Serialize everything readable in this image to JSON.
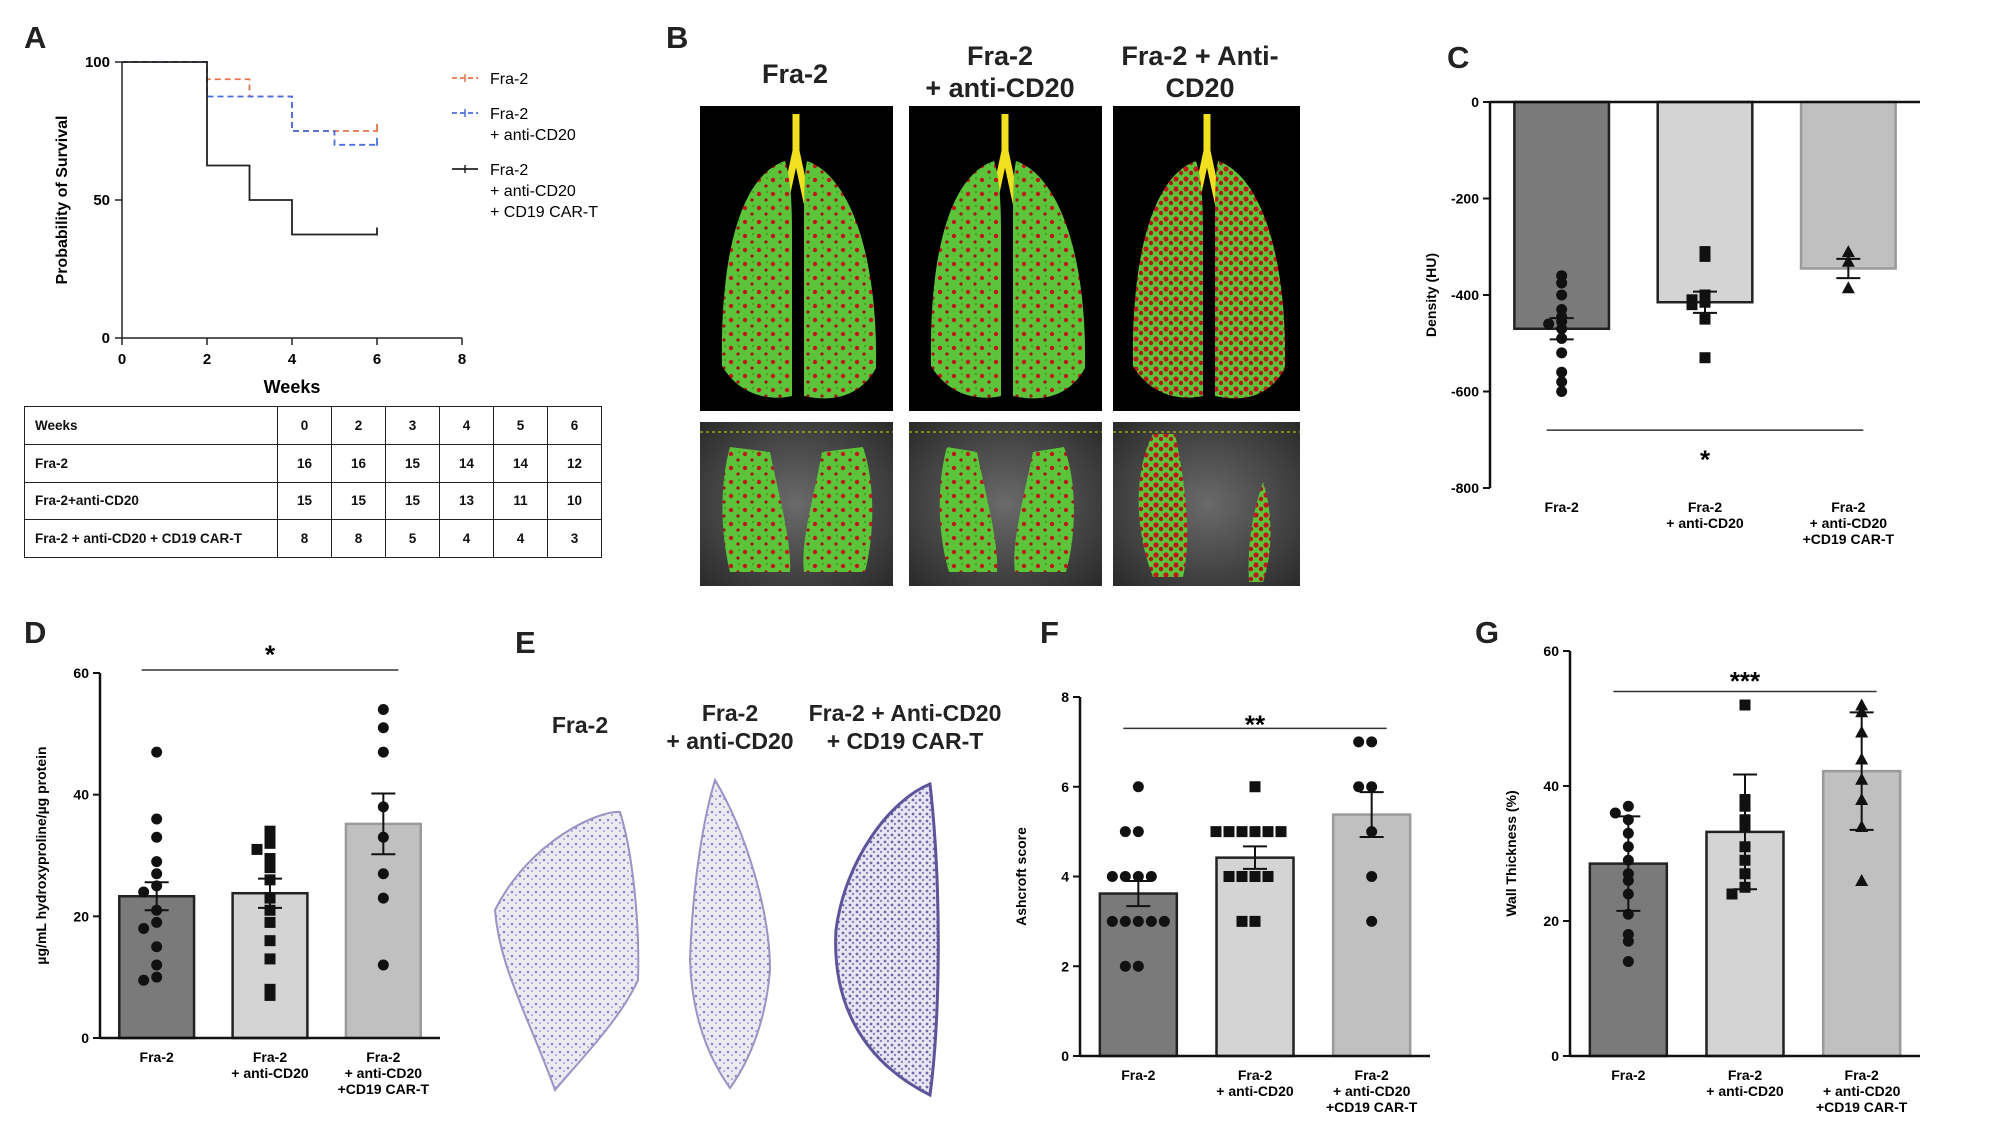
{
  "panels": {
    "A": {
      "label": "A",
      "survival": {
        "ylabel": "Probability of Survival",
        "xlabel": "Weeks",
        "xticks": [
          "0",
          "2",
          "4",
          "6",
          "8"
        ],
        "yticks": [
          "0",
          "50",
          "100"
        ],
        "xlim": [
          0,
          8
        ],
        "ylim": [
          0,
          100
        ],
        "series": [
          {
            "name": "Fra-2",
            "color": "#e8744a",
            "dash": "6,4",
            "steps": [
              [
                0,
                100
              ],
              [
                2,
                93.75
              ],
              [
                3,
                87.5
              ],
              [
                4,
                75
              ],
              [
                6,
                75
              ]
            ]
          },
          {
            "name": "Fra-2 + anti-CD20",
            "color": "#4a6ee0",
            "dash": "6,4",
            "steps": [
              [
                0,
                100
              ],
              [
                2,
                87.5
              ],
              [
                4,
                75
              ],
              [
                5,
                70
              ],
              [
                6,
                70
              ]
            ]
          },
          {
            "name": "Fra-2 + anti-CD20 + CD19 CAR-T",
            "color": "#222222",
            "dash": "",
            "steps": [
              [
                0,
                100
              ],
              [
                2,
                62.5
              ],
              [
                3,
                50
              ],
              [
                4,
                37.5
              ],
              [
                6,
                37.5
              ]
            ]
          }
        ],
        "legend": [
          {
            "lines": [
              "Fra-2"
            ],
            "color": "#e8744a",
            "dashed": true
          },
          {
            "lines": [
              "Fra-2",
              "+ anti-CD20"
            ],
            "color": "#4a6ee0",
            "dashed": true
          },
          {
            "lines": [
              "Fra-2",
              "+ anti-CD20",
              "+ CD19 CAR-T"
            ],
            "color": "#222222",
            "dashed": false
          }
        ]
      },
      "table": {
        "header": [
          "Weeks",
          "0",
          "2",
          "3",
          "4",
          "5",
          "6"
        ],
        "rows": [
          [
            "Fra-2",
            "16",
            "16",
            "15",
            "14",
            "14",
            "12"
          ],
          [
            "Fra-2+anti-CD20",
            "15",
            "15",
            "15",
            "13",
            "11",
            "10"
          ],
          [
            "Fra-2 + anti-CD20 + CD19 CAR-T",
            "8",
            "8",
            "5",
            "4",
            "4",
            "3"
          ]
        ]
      }
    },
    "B": {
      "label": "B",
      "titles": [
        [
          "Fra-2"
        ],
        [
          "Fra-2",
          "+ anti-CD20"
        ],
        [
          "Fra-2 + Anti-",
          "CD20"
        ]
      ]
    },
    "E": {
      "label": "E",
      "titles": [
        [
          "Fra-2"
        ],
        [
          "Fra-2",
          "+ anti-CD20"
        ],
        [
          "Fra-2 + Anti-CD20",
          "+ CD19 CAR-T"
        ]
      ]
    }
  },
  "chart_data": [
    {
      "id": "C",
      "label": "C",
      "type": "bar",
      "ylabel": "Density (HU)",
      "ylim": [
        -800,
        0
      ],
      "yticks": [
        0,
        -200,
        -400,
        -600,
        -800
      ],
      "categories": [
        [
          "Fra-2"
        ],
        [
          "Fra-2",
          "+ anti-CD20"
        ],
        [
          "Fra-2",
          "+ anti-CD20",
          "+CD19 CAR-T"
        ]
      ],
      "values": [
        -470,
        -415,
        -345
      ],
      "errors": [
        22,
        22,
        20
      ],
      "bar_colors": [
        "#7a7a7a",
        "#d4d4d4",
        "#c0c0c0"
      ],
      "bar_edges": [
        "#222222",
        "#222222",
        "#9a9a9a"
      ],
      "markers": [
        "circle",
        "square",
        "triangle"
      ],
      "points": [
        [
          -360,
          -375,
          -400,
          -430,
          -445,
          -455,
          -460,
          -470,
          -490,
          -520,
          -560,
          -580,
          -600
        ],
        [
          -310,
          -320,
          -400,
          -410,
          -415,
          -420,
          -450,
          -530
        ],
        [
          -310,
          -330,
          -385
        ]
      ],
      "significance": {
        "text": "*",
        "from": 0,
        "to": 2,
        "value": -680,
        "text_value": -735
      }
    },
    {
      "id": "D",
      "label": "D",
      "type": "bar",
      "ylabel": "µg/mL hydroxyproline/µg protein",
      "ylim": [
        0,
        60
      ],
      "yticks": [
        0,
        20,
        40,
        60
      ],
      "categories": [
        [
          "Fra-2"
        ],
        [
          "Fra-2",
          "+ anti-CD20"
        ],
        [
          "Fra-2",
          "+ anti-CD20",
          "+CD19 CAR-T"
        ]
      ],
      "values": [
        23.3,
        23.8,
        35.2
      ],
      "errors": [
        2.3,
        2.4,
        5
      ],
      "bar_colors": [
        "#7a7a7a",
        "#d4d4d4",
        "#c0c0c0"
      ],
      "bar_edges": [
        "#222222",
        "#222222",
        "#9a9a9a"
      ],
      "markers": [
        "circle",
        "square",
        "circle"
      ],
      "points": [
        [
          47,
          36,
          33,
          29,
          27,
          25,
          24,
          21,
          19,
          18,
          15,
          12,
          10,
          9.5
        ],
        [
          34,
          33,
          32,
          31,
          29.5,
          28,
          26,
          23,
          21,
          19,
          16,
          13,
          8,
          7
        ],
        [
          54,
          51,
          47,
          38,
          33,
          27,
          23,
          12
        ]
      ],
      "significance": {
        "text": "*",
        "from": 0,
        "to": 2,
        "value": 60.5,
        "text_value": 63.5
      }
    },
    {
      "id": "F",
      "label": "F",
      "type": "bar",
      "ylabel": "Ashcroft score",
      "ylim": [
        0,
        8
      ],
      "yticks": [
        0,
        2,
        4,
        6,
        8
      ],
      "categories": [
        [
          "Fra-2"
        ],
        [
          "Fra-2",
          "+ anti-CD20"
        ],
        [
          "Fra-2",
          "+ anti-CD20",
          "+CD19 CAR-T"
        ]
      ],
      "values": [
        3.62,
        4.42,
        5.38
      ],
      "errors": [
        0.28,
        0.25,
        0.5
      ],
      "bar_colors": [
        "#7a7a7a",
        "#d4d4d4",
        "#c0c0c0"
      ],
      "bar_edges": [
        "#222222",
        "#222222",
        "#9a9a9a"
      ],
      "markers": [
        "circle",
        "square",
        "circle"
      ],
      "points": [
        [
          6,
          5,
          5,
          4,
          4,
          4,
          4,
          3,
          3,
          3,
          3,
          3,
          2,
          2
        ],
        [
          6,
          5,
          5,
          5,
          5,
          5,
          5,
          4,
          4,
          4,
          4,
          3,
          3
        ],
        [
          7,
          7,
          6,
          6,
          5,
          4,
          3
        ]
      ],
      "significance": {
        "text": "**",
        "from": 0,
        "to": 2,
        "value": 7.3,
        "text_value": 7.45
      }
    },
    {
      "id": "G",
      "label": "G",
      "type": "bar",
      "ylabel": "Wall Thickness (%)",
      "ylim": [
        0,
        60
      ],
      "yticks": [
        0,
        20,
        40,
        60
      ],
      "categories": [
        [
          "Fra-2"
        ],
        [
          "Fra-2",
          "+ anti-CD20"
        ],
        [
          "Fra-2",
          "+ anti-CD20",
          "+CD19 CAR-T"
        ]
      ],
      "values": [
        28.5,
        33.2,
        42.2
      ],
      "errors": [
        7,
        8.5,
        8.7
      ],
      "bar_colors": [
        "#7a7a7a",
        "#d4d4d4",
        "#c0c0c0"
      ],
      "bar_edges": [
        "#222222",
        "#222222",
        "#9a9a9a"
      ],
      "markers": [
        "circle",
        "square",
        "triangle"
      ],
      "points": [
        [
          37,
          36,
          35,
          33,
          31,
          29,
          27,
          26,
          24,
          21,
          18,
          17,
          14
        ],
        [
          52,
          38,
          37,
          35,
          34,
          31,
          29,
          27,
          25,
          24
        ],
        [
          52,
          51,
          48,
          44,
          41,
          38,
          34,
          26
        ]
      ],
      "significance": {
        "text": "***",
        "from": 0,
        "to": 2,
        "value": 54,
        "text_value": 56
      }
    }
  ]
}
